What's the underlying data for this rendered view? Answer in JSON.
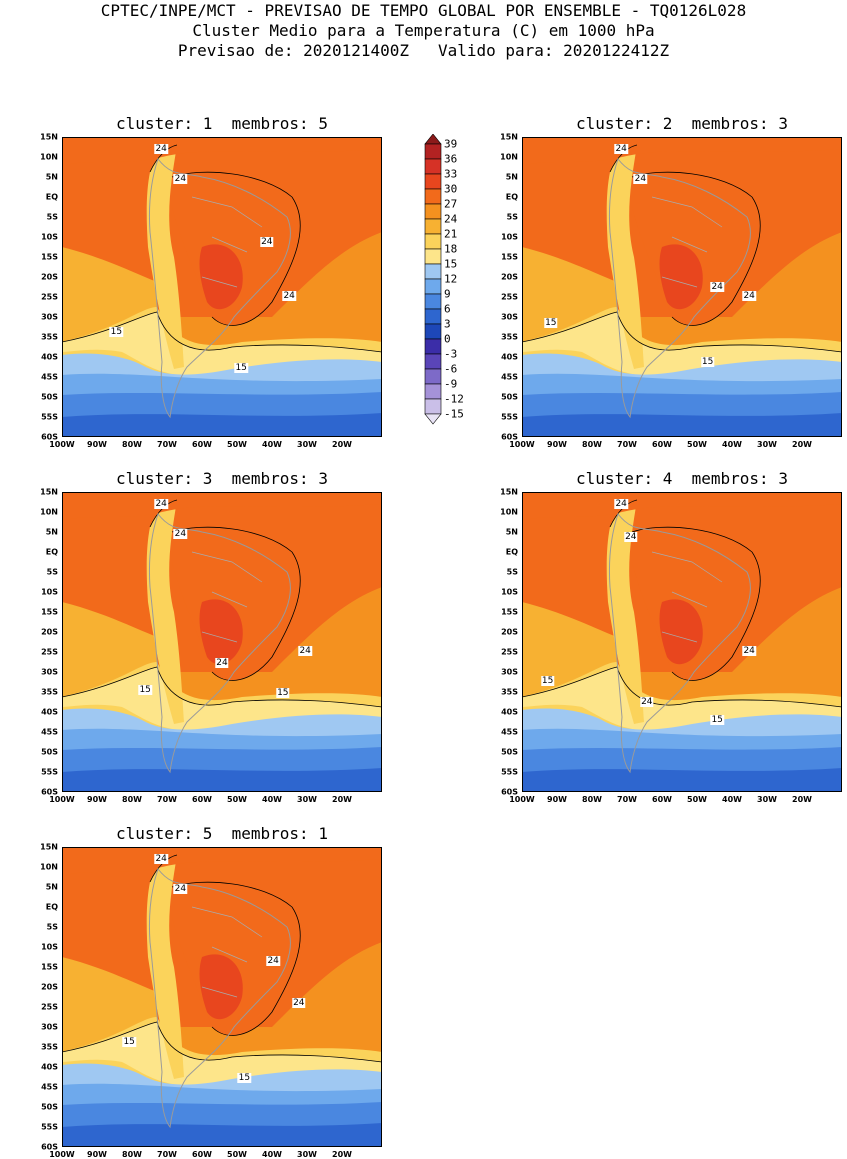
{
  "header": {
    "line1": "CPTEC/INPE/MCT - PREVISAO DE TEMPO GLOBAL POR ENSEMBLE - TQ0126L028",
    "line2": "Cluster Medio para a Temperatura (C) em 1000 hPa",
    "line3": "Previsao de: 2020121400Z   Valido para: 2020122412Z"
  },
  "lat_labels": [
    "15N",
    "10N",
    "5N",
    "EQ",
    "5S",
    "10S",
    "15S",
    "20S",
    "25S",
    "30S",
    "35S",
    "40S",
    "45S",
    "50S",
    "55S",
    "60S"
  ],
  "lon_labels": [
    "100W",
    "90W",
    "80W",
    "70W",
    "60W",
    "50W",
    "40W",
    "30W",
    "20W"
  ],
  "colorbar": {
    "labels": [
      "39",
      "36",
      "33",
      "30",
      "27",
      "24",
      "21",
      "18",
      "15",
      "12",
      "9",
      "6",
      "3",
      "0",
      "-3",
      "-6",
      "-9",
      "-12",
      "-15"
    ],
    "colors": [
      "#8b1a1a",
      "#b22222",
      "#d63226",
      "#e8461e",
      "#f26a1b",
      "#f4911f",
      "#f7b132",
      "#fbd35b",
      "#fde58a",
      "#9fc8f2",
      "#6ea9ec",
      "#4a87e0",
      "#2e66cf",
      "#1d47b8",
      "#3b2da8",
      "#5a45b8",
      "#7d6ac8",
      "#a592d8",
      "#cabfe8",
      "#e9e4f6"
    ]
  },
  "panels": [
    {
      "title": "cluster: 1  membros: 5",
      "contour_labels": [
        "24",
        "24",
        "24",
        "24",
        "15",
        "15"
      ]
    },
    {
      "title": "cluster: 2  membros: 3",
      "contour_labels": [
        "24",
        "24",
        "24",
        "24",
        "15",
        "15"
      ]
    },
    {
      "title": "cluster: 3  membros: 3",
      "contour_labels": [
        "24",
        "24",
        "24",
        "24",
        "15",
        "15"
      ]
    },
    {
      "title": "cluster: 4  membros: 3",
      "contour_labels": [
        "24",
        "24",
        "24",
        "24",
        "15",
        "15"
      ]
    },
    {
      "title": "cluster: 5  membros: 1",
      "contour_labels": [
        "24",
        "24",
        "24",
        "24",
        "15",
        "15"
      ]
    }
  ]
}
